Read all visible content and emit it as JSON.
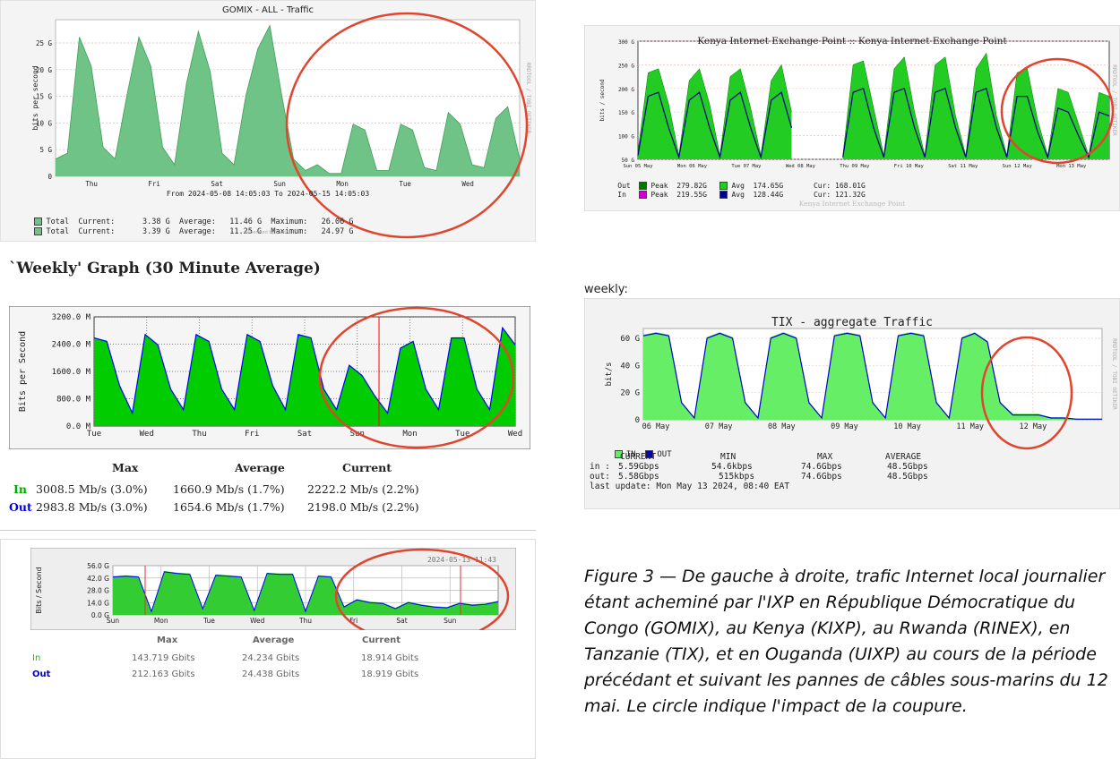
{
  "chart_data": [
    {
      "type": "area",
      "title": "GOMIX - ALL - Traffic",
      "ylabel": "bits per second",
      "y_ticks": [
        "25 G",
        "20 G",
        "15 G",
        "10 G",
        "5 G",
        "0"
      ],
      "ylim": [
        0,
        27
      ],
      "x_ticks": [
        "Thu",
        "Fri",
        "Sat",
        "Sun",
        "Mon",
        "Tue",
        "Wed"
      ],
      "subtitle": "From 2024-05-08 14:05:03 To 2024-05-15 14:05:03",
      "side_text": "RRDTOOL / TOBI OETIKER",
      "series": [
        {
          "name": "Total",
          "values": [
            3,
            4,
            24,
            19,
            5,
            3,
            14,
            24,
            19,
            5,
            2,
            16,
            25,
            18,
            4,
            2,
            14,
            22,
            26,
            14,
            3,
            1,
            2,
            0.5,
            0.5,
            9,
            8,
            1,
            1,
            9,
            8,
            1.5,
            1,
            11,
            9,
            2,
            1.5,
            10,
            12,
            3
          ]
        }
      ],
      "legend": [
        {
          "label": "Total",
          "current": "3.38 G",
          "average": "11.46 G",
          "maximum": "26.06 G"
        },
        {
          "label": "Total",
          "current": "3.39 G",
          "average": "11.25 G",
          "maximum": "24.97 G"
        }
      ],
      "legend_words": {
        "current": "Current:",
        "average": "Average:",
        "maximum": "Maximum:"
      },
      "footer": "Generated by Cacti®",
      "colors": {
        "fill": "#6fc386",
        "line": "#3f9f5a"
      }
    },
    {
      "type": "area",
      "title": "`Weekly' Graph (30 Minute Average)",
      "ylabel": "Bits per Second",
      "y_ticks": [
        "3200.0 M",
        "2400.0 M",
        "1600.0 M",
        "800.0 M",
        "0.0 M"
      ],
      "ylim": [
        0,
        3200
      ],
      "x_ticks": [
        "Tue",
        "Wed",
        "Thu",
        "Fri",
        "Sat",
        "Sun",
        "Mon",
        "Tue",
        "Wed"
      ],
      "series": [
        {
          "name": "In",
          "values": [
            2600,
            2500,
            1200,
            400,
            2700,
            2400,
            1100,
            500,
            2700,
            2500,
            1100,
            500,
            2700,
            2500,
            1200,
            500,
            2700,
            2600,
            1100,
            500,
            1800,
            1500,
            900,
            400,
            2300,
            2500,
            1100,
            500,
            2600,
            2600,
            1100,
            500,
            2900,
            2400
          ]
        },
        {
          "name": "Out",
          "values": [
            2580,
            2480,
            1180,
            380,
            2680,
            2380,
            1080,
            480,
            2680,
            2480,
            1080,
            480,
            2680,
            2480,
            1180,
            480,
            2680,
            2580,
            1080,
            480,
            1780,
            1480,
            880,
            380,
            2280,
            2480,
            1080,
            480,
            2580,
            2580,
            1080,
            480,
            2880,
            2380
          ]
        }
      ],
      "stats_header": [
        "Max",
        "Average",
        "Current"
      ],
      "stats": [
        {
          "label": "In",
          "max": "3008.5 Mb/s (3.0%)",
          "avg": "1660.9 Mb/s (1.7%)",
          "cur": "2222.2 Mb/s (2.2%)"
        },
        {
          "label": "Out",
          "max": "2983.8 Mb/s (3.0%)",
          "avg": "1654.6 Mb/s (1.7%)",
          "cur": "2198.0 Mb/s (2.2%)"
        }
      ],
      "colors": {
        "in": "#00cc00",
        "out": "#0000ff"
      }
    },
    {
      "type": "area",
      "title": "",
      "timestamp": "2024-05-13 11:43",
      "ylabel": "Bits / Second",
      "y_ticks": [
        "56.0 G",
        "42.0 G",
        "28.0 G",
        "14.0 G",
        "0.0 G"
      ],
      "ylim": [
        0,
        56
      ],
      "x_ticks": [
        "Sun",
        "Mon",
        "Tue",
        "Wed",
        "Thu",
        "Fri",
        "Sat",
        "Sun"
      ],
      "series": [
        {
          "name": "In",
          "values": [
            44,
            45,
            44,
            5,
            50,
            48,
            47,
            8,
            46,
            45,
            44,
            6,
            48,
            47,
            47,
            5,
            45,
            44,
            10,
            18,
            15,
            14,
            8,
            15,
            12,
            10,
            9,
            14,
            12,
            13,
            16
          ]
        },
        {
          "name": "Out",
          "values": [
            43,
            44,
            43,
            4,
            49,
            47,
            46,
            7,
            45,
            44,
            43,
            5,
            47,
            46,
            46,
            4,
            44,
            43,
            9,
            17,
            14,
            13,
            7,
            14,
            11,
            9,
            8,
            13,
            11,
            12,
            15
          ]
        }
      ],
      "stats_header": [
        "Max",
        "Average",
        "Current"
      ],
      "stats": [
        {
          "label": "In",
          "max": "143.719 Gbits",
          "avg": "24.234 Gbits",
          "cur": "18.914 Gbits"
        },
        {
          "label": "Out",
          "max": "212.163 Gbits",
          "avg": "24.438 Gbits",
          "cur": "18.919 Gbits"
        }
      ],
      "colors": {
        "in": "#33cc33",
        "out": "#0000ff"
      }
    },
    {
      "type": "area",
      "title": "Kenya Internet Exchange Point :: Kenya Internet Exchange Point",
      "ylabel": "bits / second",
      "y_ticks": [
        "300 G",
        "250 G",
        "200 G",
        "150 G",
        "100 G",
        "50 G"
      ],
      "ylim": [
        0,
        300
      ],
      "x_ticks": [
        "Sun 05 May",
        "Mon 06 May",
        "Tue 07 May",
        "Wed 08 May",
        "Thu 09 May",
        "Fri 10 May",
        "Sat 11 May",
        "Sun 12 May",
        "Mon 13 May"
      ],
      "side_text": "RRDTOOL / TOBI OETIKER",
      "series": [
        {
          "name": "Out Avg",
          "values": [
            20,
            220,
            230,
            140,
            10,
            200,
            230,
            140,
            10,
            210,
            230,
            130,
            10,
            200,
            240,
            120,
            null,
            null,
            null,
            null,
            10,
            240,
            250,
            130,
            10,
            230,
            260,
            120,
            10,
            240,
            260,
            110,
            10,
            230,
            270,
            110,
            10,
            220,
            230,
            100,
            10,
            180,
            170,
            90,
            10,
            170,
            160
          ]
        },
        {
          "name": "In Avg",
          "values": [
            10,
            160,
            170,
            80,
            5,
            150,
            170,
            80,
            5,
            150,
            170,
            80,
            5,
            150,
            170,
            80,
            null,
            null,
            null,
            null,
            5,
            170,
            180,
            80,
            5,
            170,
            180,
            80,
            5,
            170,
            180,
            80,
            5,
            170,
            180,
            80,
            5,
            160,
            160,
            70,
            5,
            130,
            120,
            60,
            5,
            120,
            110
          ]
        }
      ],
      "legend": [
        {
          "dir": "Out",
          "peak_label": "Peak",
          "peak": "279.82G",
          "avg_label": "Avg",
          "avg": "174.65G",
          "cur": "Cur: 168.01G"
        },
        {
          "dir": "In",
          "peak_label": "Peak",
          "peak": "219.55G",
          "avg_label": "Avg",
          "avg": "128.44G",
          "cur": "Cur: 121.32G"
        }
      ],
      "footer": "Kenya Internet Exchange Point",
      "colors": {
        "out_peak": "#007700",
        "in_peak": "#cc00cc",
        "out_avg": "#22cc22",
        "in_avg": "#000088"
      }
    },
    {
      "type": "area",
      "label": "weekly:",
      "title": "TIX - aggregate Traffic",
      "ylabel": "bit/s",
      "y_ticks": [
        "60 G",
        "40 G",
        "20 G",
        "0"
      ],
      "ylim": [
        0,
        75
      ],
      "x_ticks": [
        "06 May",
        "07 May",
        "08 May",
        "09 May",
        "10 May",
        "11 May",
        "12 May"
      ],
      "side_text": "RRDTOOL / TOBI OETIKER",
      "series": [
        {
          "name": "IN",
          "values": [
            70,
            72,
            70,
            15,
            2,
            68,
            72,
            68,
            15,
            2,
            68,
            72,
            68,
            15,
            2,
            70,
            72,
            70,
            15,
            2,
            70,
            72,
            70,
            15,
            2,
            68,
            72,
            65,
            15,
            5,
            5,
            5,
            2,
            2,
            1,
            1,
            1
          ]
        },
        {
          "name": "OUT",
          "values": [
            69,
            71,
            69,
            14,
            1.5,
            67,
            71,
            67,
            14,
            1.5,
            67,
            71,
            67,
            14,
            1.5,
            69,
            71,
            69,
            14,
            1.5,
            69,
            71,
            69,
            14,
            1.5,
            67,
            71,
            64,
            14,
            4,
            4,
            4,
            1.5,
            1.5,
            0.5,
            0.5,
            0.5
          ]
        }
      ],
      "legend_labels": [
        "IN",
        "OUT"
      ],
      "table_header": [
        "CURRENT",
        "MIN",
        "MAX",
        "AVERAGE"
      ],
      "table": [
        {
          "label": "in :",
          "current": "5.59Gbps",
          "min": "54.6kbps",
          "max": "74.6Gbps",
          "average": "48.5Gbps"
        },
        {
          "label": "out:",
          "current": "5.58Gbps",
          "min": "515kbps",
          "max": "74.6Gbps",
          "average": "48.5Gbps"
        }
      ],
      "last_update": "last update: Mon May 13 2024, 08:40 EAT",
      "colors": {
        "in": "#66ee66",
        "out": "#0000cc"
      }
    }
  ],
  "caption": "Figure 3  — De gauche à droite, trafic Internet local journalier étant acheminé par l'IXP  en République Démocratique du Congo (GOMIX), au Kenya (KIXP), au Rwanda (RINEX),  en Tanzanie (TIX), et en Ouganda (UIXP) au cours de la période précédant et suivant les pannes de câbles sous-marins du 12 mai. Le circle indique l'impact de la coupure.",
  "colors": {
    "highlight_circle": "#e0452e"
  }
}
